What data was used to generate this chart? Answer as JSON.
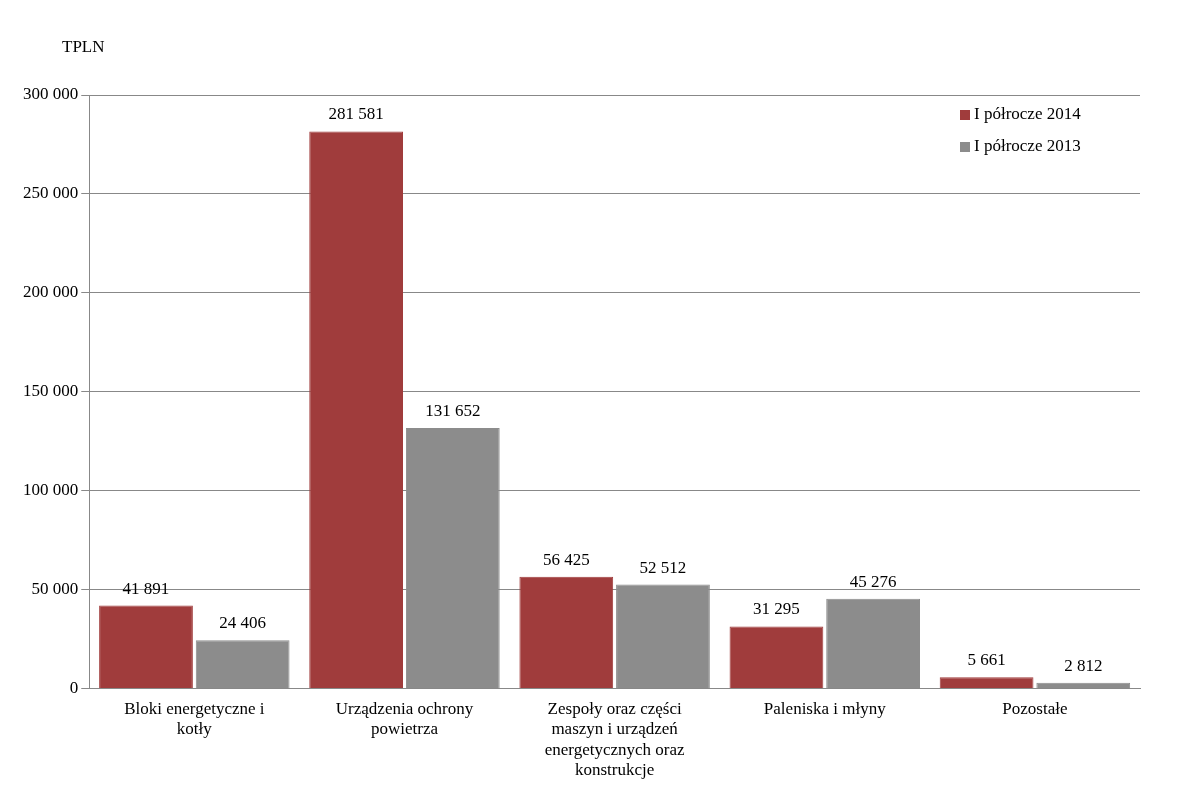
{
  "chart_data": {
    "type": "bar",
    "ylabel": "TPLN",
    "categories": [
      "Bloki energetyczne i kotły",
      "Urządzenia ochrony powietrza",
      "Zespoły oraz części maszyn i urządzeń energetycznych oraz konstrukcje",
      "Paleniska i młyny",
      "Pozostałe"
    ],
    "series": [
      {
        "name": "I półrocze 2014",
        "color": "#a03c3c",
        "values": [
          41891,
          281581,
          56425,
          31295,
          5661
        ],
        "value_labels": [
          "41 891",
          "281 581",
          "56 425",
          "31 295",
          "5 661"
        ]
      },
      {
        "name": "I półrocze 2013",
        "color": "#8c8c8c",
        "values": [
          24406,
          131652,
          52512,
          45276,
          2812
        ],
        "value_labels": [
          "24 406",
          "131 652",
          "52 512",
          "45 276",
          "2 812"
        ]
      }
    ],
    "ylim": [
      0,
      300000
    ],
    "yticks": [
      {
        "value": 0,
        "label": "0"
      },
      {
        "value": 50000,
        "label": "50 000"
      },
      {
        "value": 100000,
        "label": "100 000"
      },
      {
        "value": 150000,
        "label": "150 000"
      },
      {
        "value": 200000,
        "label": "200 000"
      },
      {
        "value": 250000,
        "label": "250 000"
      },
      {
        "value": 300000,
        "label": "300 000"
      }
    ],
    "grid": "y",
    "legend": "top right"
  }
}
